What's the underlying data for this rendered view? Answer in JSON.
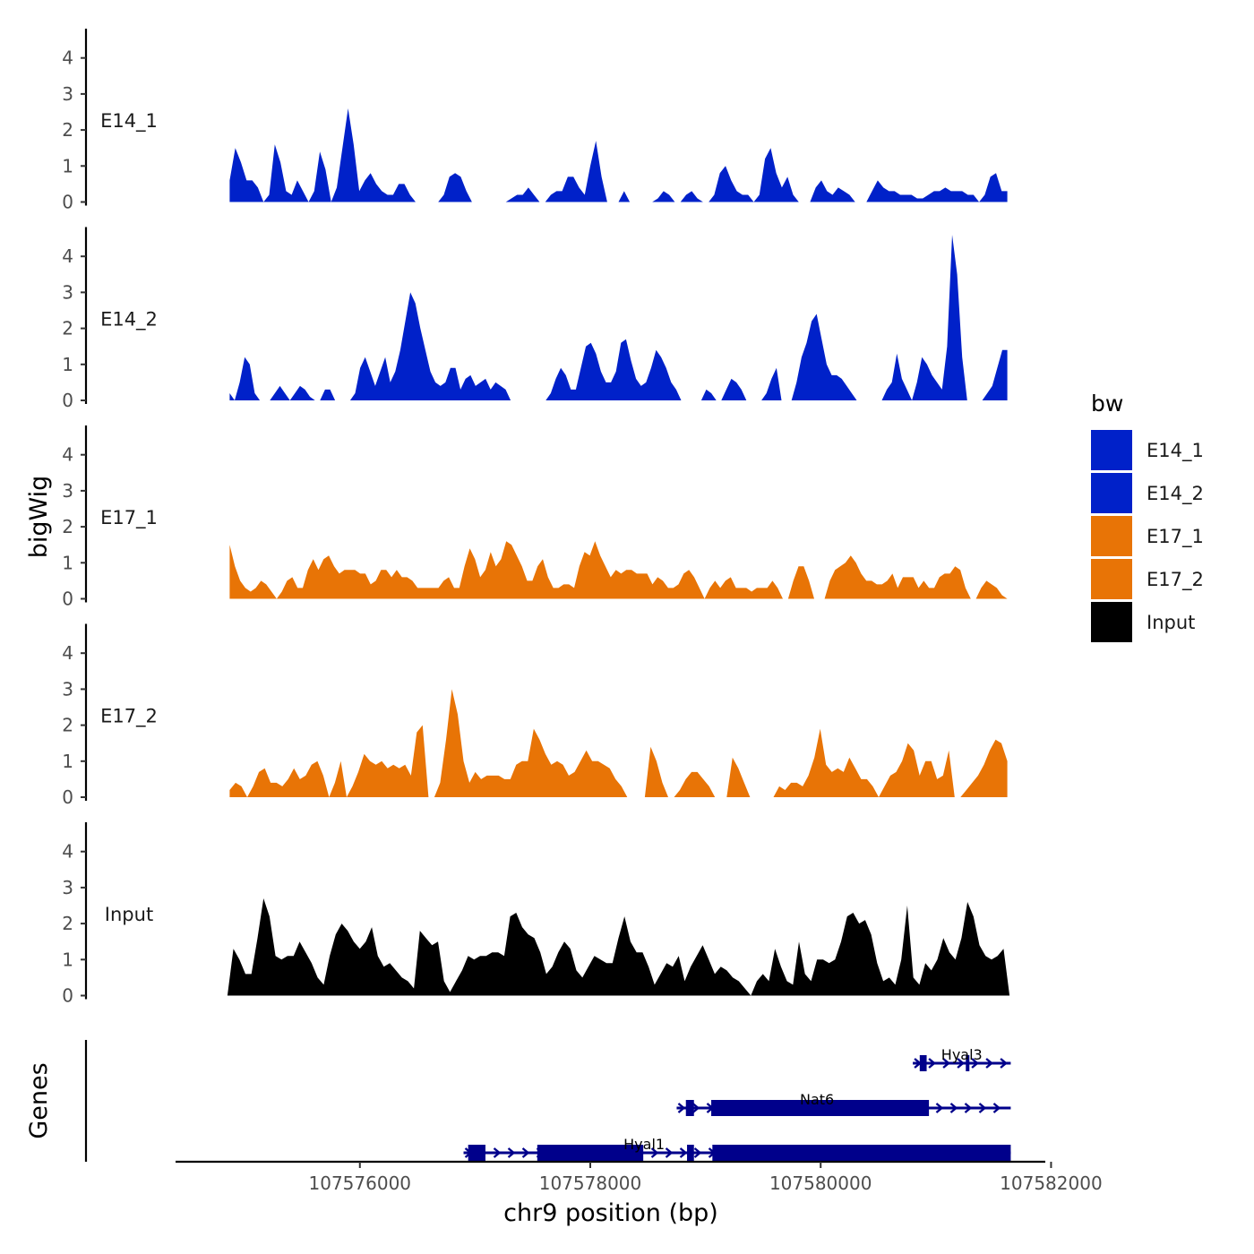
{
  "chart_data": {
    "type": "area",
    "ylabel": "bigWig",
    "xlabel": "chr9 position (bp)",
    "genes_label": "Genes",
    "xlim": [
      107574400,
      107581950
    ],
    "ylim": [
      0,
      4.9
    ],
    "yticks": [
      0,
      1,
      2,
      3,
      4
    ],
    "xticks": [
      107576000,
      107578000,
      107580000,
      107582000
    ],
    "xtick_labels": [
      "107576000",
      "107578000",
      "107580000",
      "107582000"
    ],
    "legend": {
      "title": "bw",
      "entries": [
        {
          "label": "E14_1",
          "color": "#0021c9"
        },
        {
          "label": "E14_2",
          "color": "#0021c9"
        },
        {
          "label": "E17_1",
          "color": "#e87406"
        },
        {
          "label": "E17_2",
          "color": "#e87406"
        },
        {
          "label": "Input",
          "color": "#000000"
        }
      ]
    },
    "tracks": [
      {
        "name": "E14_1",
        "color": "#0021c9",
        "x_start": 107574870,
        "x_end": 107581620,
        "values": [
          0.6,
          1.5,
          1.1,
          0.6,
          0.6,
          0.4,
          0,
          0.2,
          1.6,
          1.1,
          0.3,
          0.2,
          0.6,
          0.3,
          0,
          0.3,
          1.4,
          0.9,
          0,
          0.4,
          1.5,
          2.6,
          1.6,
          0.3,
          0.6,
          0.8,
          0.5,
          0.3,
          0.2,
          0.2,
          0.5,
          0.5,
          0.2,
          0,
          0,
          0,
          0,
          0,
          0.2,
          0.7,
          0.8,
          0.7,
          0.3,
          0,
          0,
          0,
          0,
          0,
          0,
          0,
          0.1,
          0.2,
          0.2,
          0.4,
          0.2,
          0,
          0,
          0.2,
          0.3,
          0.3,
          0.7,
          0.7,
          0.4,
          0.2,
          1.0,
          1.7,
          0.7,
          0,
          0,
          0,
          0.3,
          0,
          0,
          0,
          0,
          0,
          0.1,
          0.3,
          0.2,
          0,
          0,
          0.2,
          0.3,
          0.1,
          0,
          0,
          0.2,
          0.8,
          1.0,
          0.6,
          0.3,
          0.2,
          0.2,
          0,
          0.2,
          1.2,
          1.5,
          0.8,
          0.4,
          0.7,
          0.2,
          0,
          0,
          0,
          0.4,
          0.6,
          0.3,
          0.2,
          0.4,
          0.3,
          0.2,
          0,
          0,
          0,
          0.3,
          0.6,
          0.4,
          0.3,
          0.3,
          0.2,
          0.2,
          0.2,
          0.1,
          0.1,
          0.2,
          0.3,
          0.3,
          0.4,
          0.3,
          0.3,
          0.3,
          0.2,
          0.2,
          0,
          0.2,
          0.7,
          0.8,
          0.3,
          0.3
        ]
      },
      {
        "name": "E14_2",
        "color": "#0021c9",
        "x_start": 107574870,
        "x_end": 107581620,
        "values": [
          0.2,
          0,
          0.5,
          1.2,
          1.0,
          0.2,
          0,
          0,
          0,
          0.2,
          0.4,
          0.2,
          0,
          0.2,
          0.4,
          0.3,
          0.1,
          0,
          0,
          0.3,
          0.3,
          0,
          0,
          0,
          0,
          0.2,
          0.9,
          1.2,
          0.8,
          0.4,
          0.8,
          1.2,
          0.5,
          0.8,
          1.4,
          2.2,
          3.0,
          2.7,
          2.0,
          1.4,
          0.8,
          0.5,
          0.4,
          0.5,
          0.9,
          0.9,
          0.3,
          0.6,
          0.7,
          0.4,
          0.5,
          0.6,
          0.3,
          0.5,
          0.4,
          0.3,
          0,
          0,
          0,
          0,
          0,
          0,
          0,
          0,
          0.2,
          0.6,
          0.9,
          0.7,
          0.3,
          0.3,
          0.9,
          1.5,
          1.6,
          1.3,
          0.8,
          0.5,
          0.5,
          0.8,
          1.6,
          1.7,
          1.1,
          0.6,
          0.4,
          0.5,
          0.9,
          1.4,
          1.2,
          0.9,
          0.5,
          0.3,
          0,
          0,
          0,
          0,
          0,
          0.3,
          0.2,
          0,
          0,
          0.3,
          0.6,
          0.5,
          0.3,
          0,
          0,
          0,
          0,
          0.2,
          0.6,
          0.9,
          0,
          0,
          0,
          0.5,
          1.2,
          1.6,
          2.2,
          2.4,
          1.7,
          1.0,
          0.7,
          0.7,
          0.6,
          0.4,
          0.2,
          0,
          0,
          0,
          0,
          0,
          0,
          0.3,
          0.5,
          1.3,
          0.6,
          0.3,
          0,
          0.5,
          1.2,
          1.0,
          0.7,
          0.5,
          0.3,
          1.5,
          4.6,
          3.5,
          1.2,
          0,
          0,
          0,
          0,
          0.2,
          0.4,
          0.9,
          1.4,
          1.4
        ]
      },
      {
        "name": "E17_1",
        "color": "#e87406",
        "x_start": 107574870,
        "x_end": 107581620,
        "values": [
          1.5,
          0.9,
          0.5,
          0.3,
          0.2,
          0.3,
          0.5,
          0.4,
          0.2,
          0,
          0.2,
          0.5,
          0.6,
          0.3,
          0.3,
          0.8,
          1.1,
          0.8,
          1.1,
          1.2,
          0.9,
          0.7,
          0.8,
          0.8,
          0.8,
          0.7,
          0.7,
          0.4,
          0.5,
          0.8,
          0.8,
          0.6,
          0.8,
          0.6,
          0.6,
          0.5,
          0.3,
          0.3,
          0.3,
          0.3,
          0.3,
          0.5,
          0.6,
          0.3,
          0.3,
          0.9,
          1.4,
          1.1,
          0.6,
          0.8,
          1.3,
          0.9,
          1.1,
          1.6,
          1.5,
          1.2,
          0.9,
          0.5,
          0.5,
          0.9,
          1.1,
          0.6,
          0.3,
          0.3,
          0.4,
          0.4,
          0.3,
          0.9,
          1.3,
          1.2,
          1.6,
          1.2,
          0.9,
          0.6,
          0.8,
          0.7,
          0.8,
          0.8,
          0.7,
          0.7,
          0.7,
          0.4,
          0.6,
          0.5,
          0.3,
          0.3,
          0.4,
          0.7,
          0.8,
          0.6,
          0.3,
          0,
          0.3,
          0.5,
          0.3,
          0.5,
          0.6,
          0.3,
          0.3,
          0.3,
          0.2,
          0.3,
          0.3,
          0.3,
          0.5,
          0.3,
          0,
          0,
          0.5,
          0.9,
          0.9,
          0.5,
          0,
          0,
          0,
          0.5,
          0.8,
          0.9,
          1.0,
          1.2,
          1.0,
          0.7,
          0.5,
          0.5,
          0.4,
          0.4,
          0.5,
          0.7,
          0.3,
          0.6,
          0.6,
          0.6,
          0.3,
          0.5,
          0.3,
          0.3,
          0.6,
          0.7,
          0.7,
          0.9,
          0.8,
          0.3,
          0,
          0,
          0.3,
          0.5,
          0.4,
          0.3,
          0.1,
          0
        ]
      },
      {
        "name": "E17_2",
        "color": "#e87406",
        "x_start": 107574870,
        "x_end": 107581620,
        "values": [
          0.2,
          0.4,
          0.3,
          0,
          0.3,
          0.7,
          0.8,
          0.4,
          0.4,
          0.3,
          0.5,
          0.8,
          0.5,
          0.6,
          0.9,
          1.0,
          0.6,
          0,
          0.4,
          1.0,
          0,
          0.3,
          0.7,
          1.2,
          1.0,
          0.9,
          1.0,
          0.8,
          0.9,
          0.8,
          0.9,
          0.6,
          1.8,
          2.0,
          0,
          0,
          0.4,
          1.6,
          3.0,
          2.3,
          1.0,
          0.4,
          0.7,
          0.5,
          0.6,
          0.6,
          0.6,
          0.5,
          0.5,
          0.9,
          1.0,
          1.0,
          1.9,
          1.6,
          1.2,
          0.9,
          1.0,
          0.9,
          0.6,
          0.7,
          1.0,
          1.3,
          1.0,
          1.0,
          0.9,
          0.8,
          0.5,
          0.3,
          0,
          0,
          0,
          0,
          1.4,
          1.0,
          0.4,
          0,
          0,
          0.2,
          0.5,
          0.7,
          0.7,
          0.5,
          0.3,
          0,
          0,
          0,
          1.1,
          0.8,
          0.4,
          0,
          0,
          0,
          0,
          0,
          0.3,
          0.2,
          0.4,
          0.4,
          0.3,
          0.6,
          1.1,
          1.9,
          0.9,
          0.7,
          0.8,
          0.7,
          1.1,
          0.8,
          0.5,
          0.5,
          0.3,
          0,
          0.3,
          0.6,
          0.7,
          1.0,
          1.5,
          1.3,
          0.6,
          1.0,
          1.0,
          0.5,
          0.6,
          1.3,
          0,
          0,
          0.2,
          0.4,
          0.6,
          0.9,
          1.3,
          1.6,
          1.5,
          1.0
        ]
      },
      {
        "name": "Input",
        "color": "#000000",
        "x_start": 107574850,
        "x_end": 107581640,
        "values": [
          0,
          1.3,
          1.0,
          0.6,
          0.6,
          1.6,
          2.7,
          2.2,
          1.1,
          1.0,
          1.1,
          1.1,
          1.5,
          1.2,
          0.9,
          0.5,
          0.3,
          1.1,
          1.7,
          2.0,
          1.8,
          1.5,
          1.3,
          1.5,
          1.9,
          1.1,
          0.8,
          0.9,
          0.7,
          0.5,
          0.4,
          0.2,
          1.8,
          1.6,
          1.4,
          1.5,
          0.4,
          0.1,
          0.4,
          0.7,
          1.1,
          1.0,
          1.1,
          1.1,
          1.2,
          1.2,
          1.1,
          2.2,
          2.3,
          1.9,
          1.7,
          1.6,
          1.2,
          0.6,
          0.8,
          1.2,
          1.5,
          1.3,
          0.7,
          0.5,
          0.8,
          1.1,
          1.0,
          0.9,
          0.9,
          1.6,
          2.2,
          1.5,
          1.2,
          1.2,
          0.8,
          0.3,
          0.6,
          0.9,
          0.8,
          1.1,
          0.4,
          0.8,
          1.1,
          1.4,
          1.0,
          0.6,
          0.8,
          0.7,
          0.5,
          0.4,
          0.2,
          0,
          0.4,
          0.6,
          0.4,
          1.3,
          0.8,
          0.4,
          0.3,
          1.5,
          0.6,
          0.4,
          1.0,
          1.0,
          0.9,
          1.0,
          1.5,
          2.2,
          2.3,
          2.0,
          2.1,
          1.7,
          0.9,
          0.4,
          0.5,
          0.3,
          1.0,
          2.5,
          0.5,
          0.3,
          0.9,
          0.7,
          1.0,
          1.6,
          1.2,
          1.0,
          1.6,
          2.6,
          2.2,
          1.4,
          1.1,
          1.0,
          1.1,
          1.3,
          0
        ]
      }
    ],
    "genes": [
      {
        "name": "Hyal3",
        "start": 107580800,
        "end": 107581650,
        "exons": [
          [
            107580860,
            107580920
          ],
          [
            107581260,
            107581290
          ]
        ]
      },
      {
        "name": "Nat6",
        "start": 107578750,
        "end": 107581650,
        "exons": [
          [
            107578830,
            107578900
          ],
          [
            107579050,
            107580940
          ]
        ]
      },
      {
        "name": "Hyal1",
        "start": 107576900,
        "end": 107581650,
        "exons": [
          [
            107576940,
            107577090
          ],
          [
            107577540,
            107578460
          ],
          [
            107578840,
            107578900
          ],
          [
            107579060,
            107581650
          ]
        ]
      }
    ]
  }
}
